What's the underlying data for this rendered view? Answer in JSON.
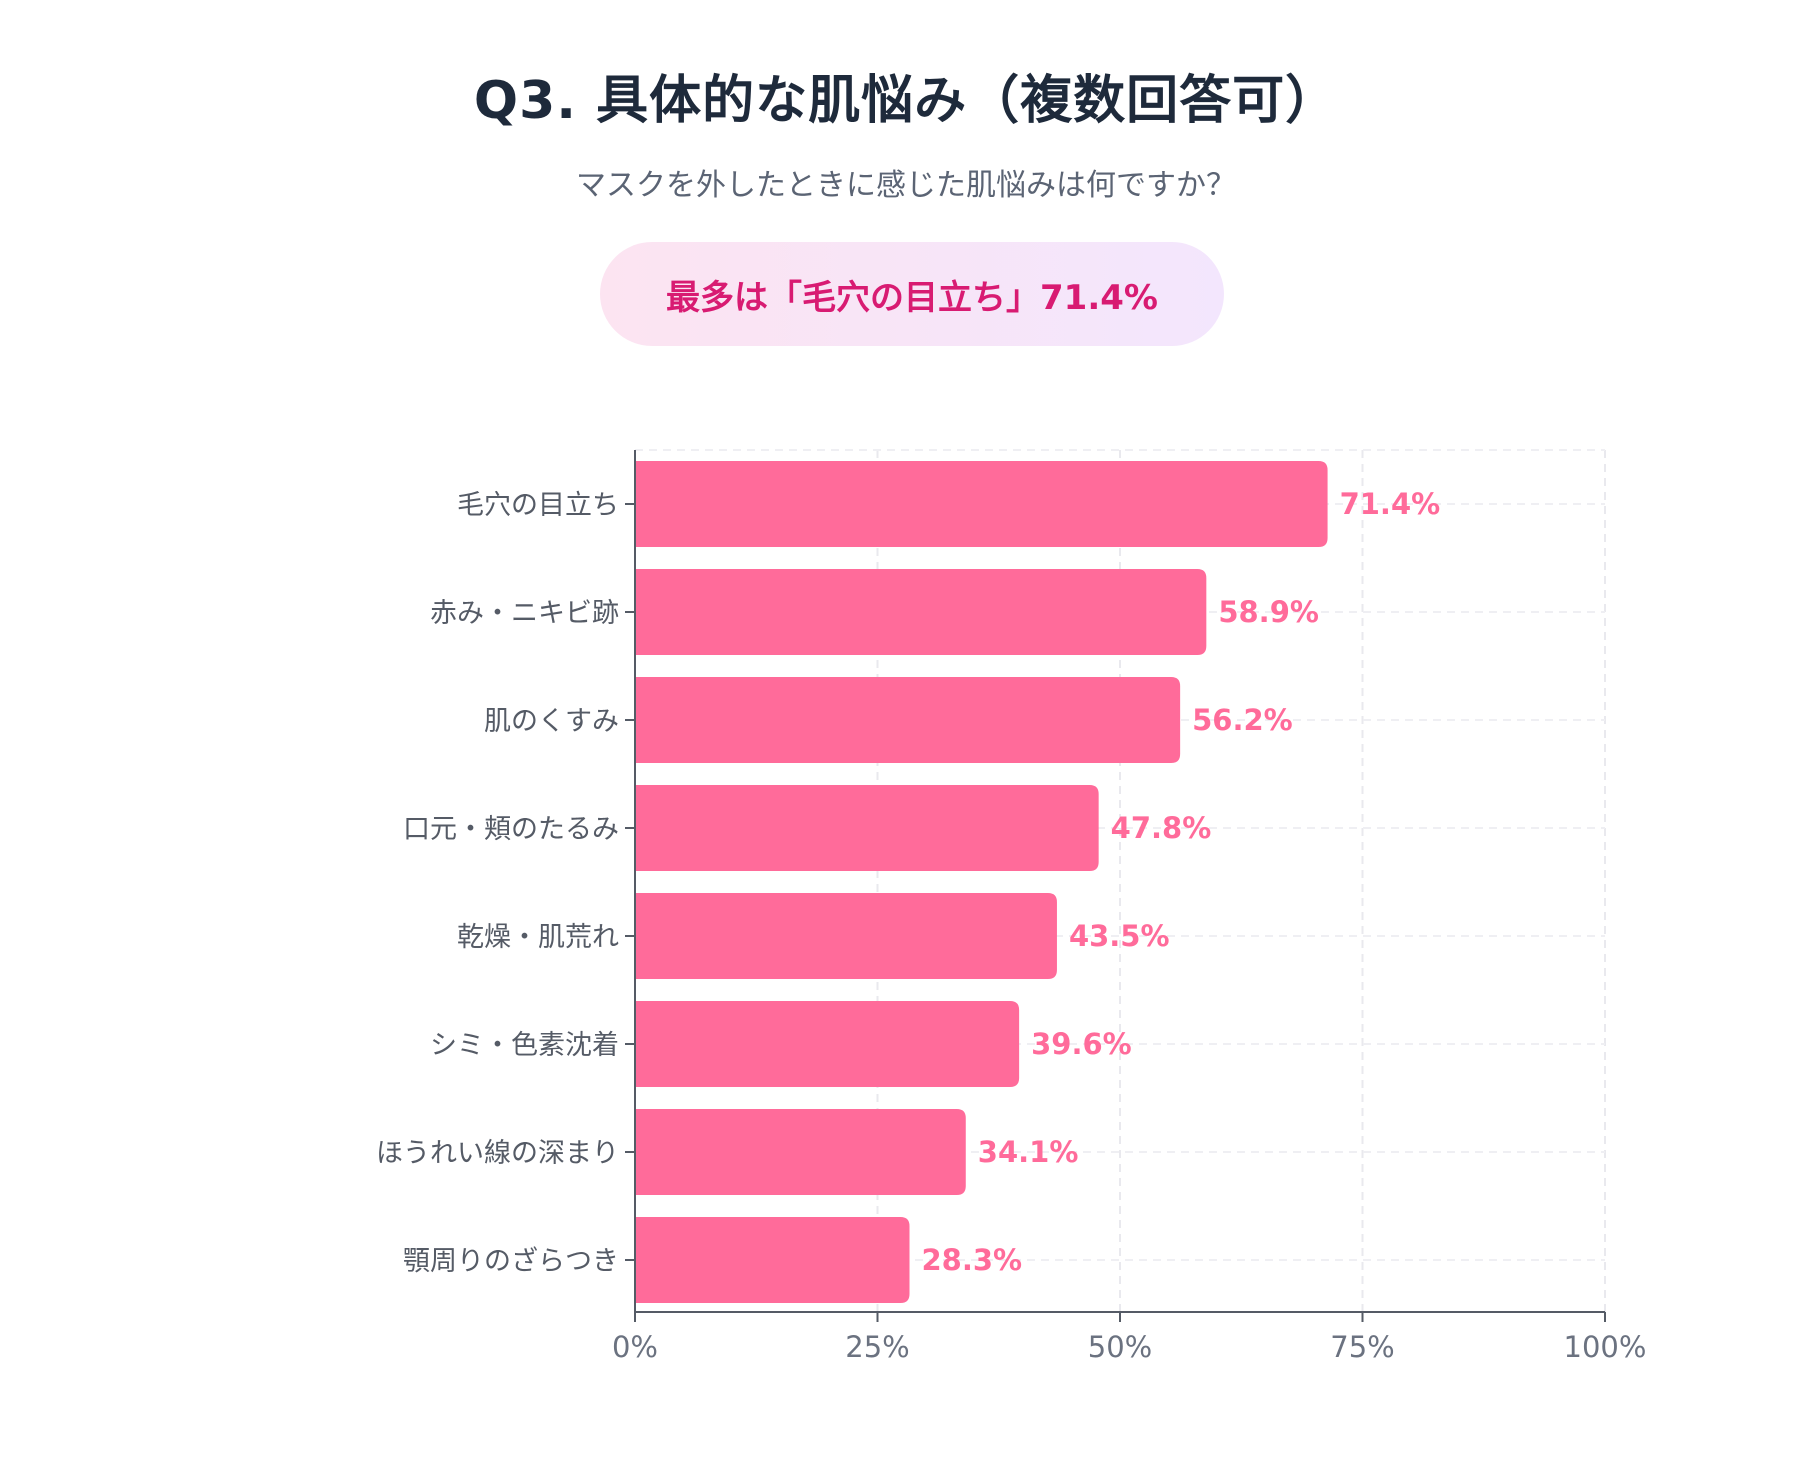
{
  "header": {
    "title": "Q3. 具体的な肌悩み（複数回答可）",
    "subtitle": "マスクを外したときに感じた肌悩みは何ですか？",
    "highlight": "最多は「毛穴の目立ち」71.4%"
  },
  "colors": {
    "bar": "#ff6b9a",
    "value_label": "#ff6b9a",
    "highlight_text": "#d81b72",
    "title": "#1e2a3b"
  },
  "chart_data": {
    "type": "bar",
    "orientation": "horizontal",
    "title": "Q3. 具体的な肌悩み（複数回答可）",
    "categories": [
      "毛穴の目立ち",
      "赤み・ニキビ跡",
      "肌のくすみ",
      "口元・頬のたるみ",
      "乾燥・肌荒れ",
      "シミ・色素沈着",
      "ほうれい線の深まり",
      "顎周りのざらつき"
    ],
    "values": [
      71.4,
      58.9,
      56.2,
      47.8,
      43.5,
      39.6,
      34.1,
      28.3
    ],
    "value_labels": [
      "71.4%",
      "58.9%",
      "56.2%",
      "47.8%",
      "43.5%",
      "39.6%",
      "34.1%",
      "28.3%"
    ],
    "xlim": [
      0,
      100
    ],
    "xticks": [
      0,
      25,
      50,
      75,
      100
    ],
    "xtick_labels": [
      "0%",
      "25%",
      "50%",
      "75%",
      "100%"
    ],
    "grid": true
  }
}
